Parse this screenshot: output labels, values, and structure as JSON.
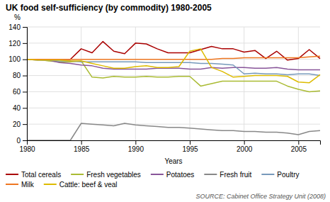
{
  "chart_data": {
    "type": "line",
    "title": "UK food self-sufficiency (by commodity) 1980-2005",
    "xlabel": "Years",
    "ylabel": "%",
    "annotations": [
      "SOURCE: Cabinet Office Strategy Unit (2008)"
    ],
    "x": [
      1980,
      1981,
      1982,
      1983,
      1984,
      1985,
      1986,
      1987,
      1988,
      1989,
      1990,
      1991,
      1992,
      1993,
      1994,
      1995,
      1996,
      1997,
      1998,
      1999,
      2000,
      2001,
      2002,
      2003,
      2004,
      2005,
      2006,
      2007
    ],
    "xlim": [
      1980,
      2007
    ],
    "xticks": [
      1980,
      1985,
      1990,
      1995,
      2000,
      2005
    ],
    "ylim": [
      0,
      140
    ],
    "yticks": [
      0,
      20,
      40,
      60,
      80,
      100,
      120,
      140
    ],
    "grid": true,
    "legend": "bottom",
    "series": [
      {
        "name": "Total cereals",
        "color": "#aa0000",
        "values": [
          100,
          100,
          100,
          100,
          100,
          113,
          108,
          122,
          110,
          107,
          120,
          119,
          113,
          108,
          108,
          108,
          112,
          116,
          113,
          113,
          109,
          111,
          101,
          110,
          99,
          101,
          112,
          101
        ]
      },
      {
        "name": "Fresh vegetables",
        "color": "#aabb33",
        "values": [
          100,
          100,
          98,
          97,
          97,
          98,
          78,
          77,
          79,
          78,
          78,
          79,
          78,
          78,
          79,
          79,
          67,
          70,
          73,
          73,
          73,
          73,
          73,
          73,
          67,
          63,
          60,
          61
        ]
      },
      {
        "name": "Potatoes",
        "color": "#885599",
        "values": [
          100,
          99,
          99,
          96,
          95,
          93,
          92,
          89,
          88,
          88,
          88,
          88,
          89,
          89,
          89,
          88,
          88,
          90,
          89,
          90,
          90,
          89,
          89,
          90,
          88,
          87,
          87,
          87
        ]
      },
      {
        "name": "Fresh fruit",
        "color": "#888888",
        "values": [
          0,
          0,
          0,
          0,
          0,
          21,
          20,
          19,
          18,
          21,
          19,
          18,
          17,
          16,
          16,
          15,
          14,
          13,
          12,
          12,
          11,
          11,
          10,
          10,
          9,
          7,
          11,
          12
        ]
      },
      {
        "name": "Poultry",
        "color": "#7799bb",
        "values": [
          100,
          99,
          99,
          98,
          98,
          97,
          97,
          97,
          97,
          97,
          97,
          96,
          96,
          96,
          96,
          96,
          95,
          95,
          94,
          93,
          82,
          83,
          82,
          82,
          81,
          82,
          82,
          80
        ]
      },
      {
        "name": "Milk",
        "color": "#ee7722",
        "values": [
          100,
          100,
          100,
          100,
          100,
          100,
          100,
          100,
          100,
          100,
          100,
          100,
          100,
          100,
          100,
          100,
          100,
          100,
          101,
          101,
          102,
          102,
          102,
          102,
          102,
          102,
          103,
          104
        ]
      },
      {
        "name": "Cattle: beef & veal",
        "color": "#ddbb00",
        "values": [
          100,
          99,
          99,
          99,
          98,
          98,
          95,
          92,
          89,
          89,
          91,
          92,
          90,
          90,
          91,
          110,
          113,
          90,
          85,
          78,
          79,
          80,
          80,
          80,
          79,
          72,
          71,
          81
        ]
      }
    ]
  }
}
